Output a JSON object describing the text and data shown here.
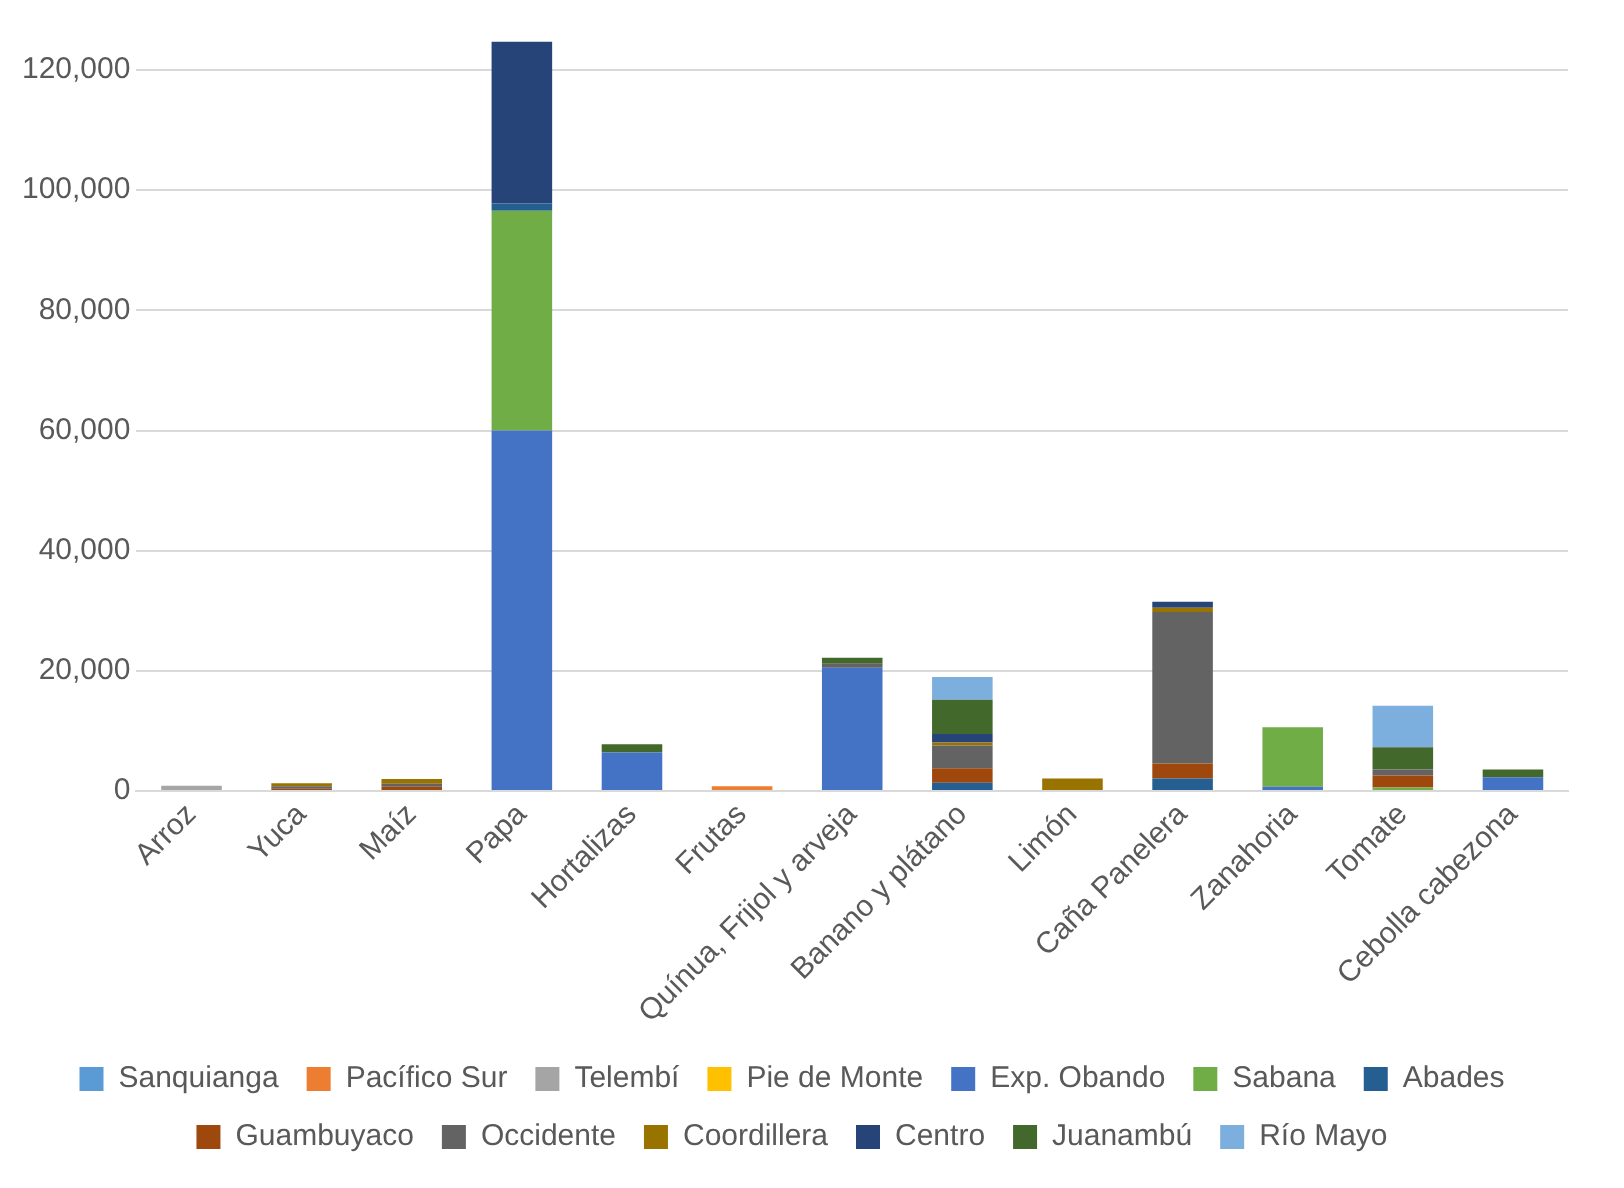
{
  "chart_data": {
    "type": "bar",
    "stacked": true,
    "categories": [
      "Arroz",
      "Yuca",
      "Maíz",
      "Papa",
      "Hortalizas",
      "Frutas",
      "Quínua, Frijol y arveja",
      "Banano y plátano",
      "Limón",
      "Caña Panelera",
      "Zanahoria",
      "Tomate",
      "Cebolla cabezona"
    ],
    "series": [
      {
        "name": "Sanquianga",
        "color": "#5b9bd5",
        "values": [
          0,
          0,
          0,
          0,
          0,
          0,
          0,
          0,
          0,
          0,
          0,
          0,
          0
        ]
      },
      {
        "name": "Pacífico Sur",
        "color": "#ed7d31",
        "values": [
          0,
          0,
          0,
          0,
          0,
          800,
          0,
          0,
          0,
          0,
          0,
          0,
          0
        ]
      },
      {
        "name": "Telembí",
        "color": "#a5a5a5",
        "values": [
          900,
          0,
          0,
          0,
          0,
          0,
          0,
          0,
          0,
          0,
          0,
          0,
          0
        ]
      },
      {
        "name": "Pie de Monte",
        "color": "#ffc000",
        "values": [
          0,
          0,
          0,
          0,
          0,
          0,
          0,
          0,
          0,
          0,
          0,
          0,
          0
        ]
      },
      {
        "name": "Exp. Obando",
        "color": "#4472c4",
        "values": [
          0,
          0,
          0,
          60000,
          6400,
          0,
          20500,
          0,
          0,
          0,
          700,
          0,
          2300
        ]
      },
      {
        "name": "Sabana",
        "color": "#70ad47",
        "values": [
          0,
          0,
          0,
          36600,
          0,
          0,
          0,
          0,
          0,
          0,
          9900,
          600,
          0
        ]
      },
      {
        "name": "Abades",
        "color": "#255e91",
        "values": [
          0,
          0,
          0,
          1200,
          0,
          0,
          0,
          1400,
          0,
          2100,
          0,
          0,
          0
        ]
      },
      {
        "name": "Guambuyaco",
        "color": "#9e480e",
        "values": [
          0,
          400,
          700,
          0,
          0,
          0,
          0,
          2400,
          0,
          2500,
          0,
          2000,
          0
        ]
      },
      {
        "name": "Occidente",
        "color": "#636363",
        "values": [
          0,
          400,
          500,
          0,
          0,
          0,
          700,
          3800,
          0,
          25200,
          0,
          1000,
          0
        ]
      },
      {
        "name": "Coordillera",
        "color": "#997300",
        "values": [
          0,
          500,
          800,
          0,
          0,
          0,
          0,
          500,
          2100,
          700,
          0,
          0,
          0
        ]
      },
      {
        "name": "Centro",
        "color": "#264478",
        "values": [
          0,
          0,
          0,
          26900,
          0,
          0,
          0,
          1400,
          0,
          1000,
          0,
          0,
          0
        ]
      },
      {
        "name": "Juanambú",
        "color": "#43682b",
        "values": [
          0,
          0,
          0,
          0,
          1400,
          0,
          1000,
          5700,
          0,
          0,
          0,
          3700,
          1300
        ]
      },
      {
        "name": "Río Mayo",
        "color": "#7cafdd",
        "values": [
          0,
          0,
          0,
          0,
          0,
          0,
          0,
          3800,
          0,
          0,
          0,
          6900,
          0
        ]
      }
    ],
    "ylim": [
      0,
      125000
    ],
    "yticks": [
      0,
      {
        "value": 20000,
        "label": "20,000"
      },
      {
        "value": 40000,
        "label": "40,000"
      },
      {
        "value": 60000,
        "label": "60,000"
      },
      {
        "value": 80000,
        "label": "80,000"
      },
      {
        "value": 100000,
        "label": "100,000"
      },
      {
        "value": 120000,
        "label": "120,000"
      }
    ],
    "grid": "y",
    "legend": "bottom"
  }
}
